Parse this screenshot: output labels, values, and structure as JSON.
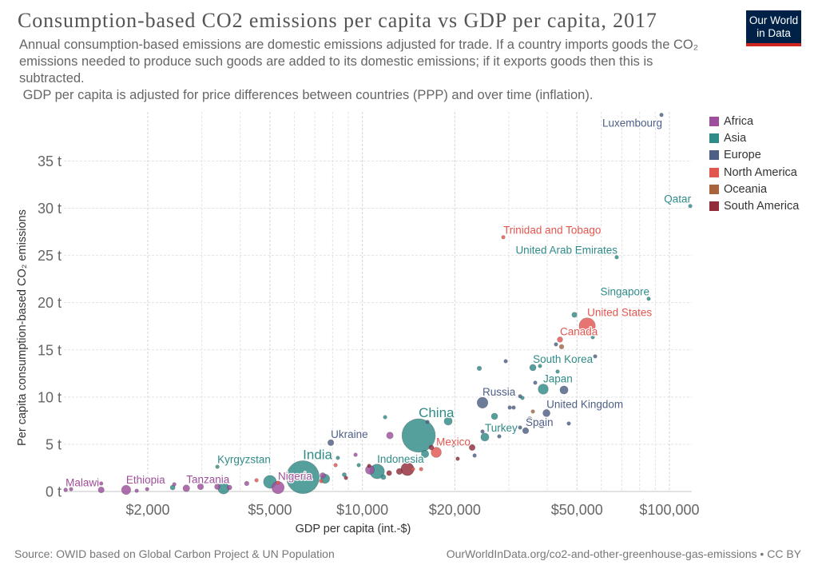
{
  "header": {
    "logo": {
      "line1": "Our World",
      "line2": "in Data"
    }
  },
  "footer": {
    "source": "Source: OWID based on Global Carbon Project & UN Population",
    "url": "OurWorldInData.org/co2-and-other-greenhouse-gas-emissions",
    "separator": " • ",
    "license": "CC BY"
  },
  "chart_data": {
    "type": "scatter",
    "title": "Consumption-based CO2 emissions per capita vs GDP per capita, 2017",
    "subtitle": [
      "Annual consumption-based emissions are domestic emissions adjusted for trade. If a country imports goods the CO₂ emissions needed to produce such goods are added to its domestic emissions; if it exports goods then this is subtracted.",
      " GDP per capita is adjusted for price differences between countries (PPP) and over time (inflation)."
    ],
    "xlabel": "GDP per capita (int.-$)",
    "ylabel": "Per capita consumption-based CO₂ emissions",
    "x_scale": "log",
    "xlim": [
      1066,
      118300
    ],
    "ylim": [
      0,
      40.2
    ],
    "grid": true,
    "x_ticks": [
      {
        "value": 2000,
        "label": "$2,000"
      },
      {
        "value": 5000,
        "label": "$5,000"
      },
      {
        "value": 10000,
        "label": "$10,000"
      },
      {
        "value": 20000,
        "label": "$20,000"
      },
      {
        "value": 50000,
        "label": "$50,000"
      },
      {
        "value": 100000,
        "label": "$100,000"
      }
    ],
    "x_grid": [
      2000,
      3000,
      4000,
      5000,
      6000,
      7000,
      8000,
      9000,
      10000,
      20000,
      30000,
      40000,
      50000,
      60000,
      70000,
      80000,
      90000,
      100000
    ],
    "y_ticks": [
      {
        "value": 0,
        "label": "0 t"
      },
      {
        "value": 5,
        "label": "5 t"
      },
      {
        "value": 10,
        "label": "10 t"
      },
      {
        "value": 15,
        "label": "15 t"
      },
      {
        "value": 20,
        "label": "20 t"
      },
      {
        "value": 25,
        "label": "25 t"
      },
      {
        "value": 30,
        "label": "30 t"
      },
      {
        "value": 35,
        "label": "35 t"
      }
    ],
    "legend_position": "right",
    "legend": [
      {
        "name": "Africa",
        "color": "#9e4f9c"
      },
      {
        "name": "Asia",
        "color": "#2f8b87"
      },
      {
        "name": "Europe",
        "color": "#4d5f85"
      },
      {
        "name": "North America",
        "color": "#e25650"
      },
      {
        "name": "Oceania",
        "color": "#a8653d"
      },
      {
        "name": "South America",
        "color": "#932c3a"
      }
    ],
    "points": [
      {
        "label": "Malawi",
        "continent": "Africa",
        "gdp": 1080,
        "co2": 0.17,
        "population_m": 18
      },
      {
        "continent": "Africa",
        "gdp": 1125,
        "co2": 0.25,
        "population_m": 12
      },
      {
        "continent": "Africa",
        "gdp": 1410,
        "co2": 0.85,
        "population_m": 8
      },
      {
        "continent": "Africa",
        "gdp": 1410,
        "co2": 0.17,
        "population_m": 45
      },
      {
        "label": "Ethiopia",
        "continent": "Africa",
        "gdp": 1700,
        "co2": 0.17,
        "population_m": 105
      },
      {
        "continent": "Africa",
        "gdp": 1840,
        "co2": 0.08,
        "population_m": 15
      },
      {
        "continent": "Africa",
        "gdp": 1990,
        "co2": 0.25,
        "population_m": 15
      },
      {
        "continent": "Africa",
        "gdp": 2440,
        "co2": 0.76,
        "population_m": 10
      },
      {
        "label": "Tanzania",
        "continent": "Africa",
        "gdp": 2670,
        "co2": 0.34,
        "population_m": 57
      },
      {
        "continent": "Africa",
        "gdp": 2970,
        "co2": 0.51,
        "population_m": 45
      },
      {
        "continent": "Africa",
        "gdp": 3370,
        "co2": 0.51,
        "population_m": 40
      },
      {
        "continent": "Africa",
        "gdp": 3690,
        "co2": 0.42,
        "population_m": 30
      },
      {
        "continent": "Africa",
        "gdp": 4200,
        "co2": 0.85,
        "population_m": 25
      },
      {
        "label": "Nigeria",
        "continent": "Africa",
        "gdp": 5310,
        "co2": 0.42,
        "population_m": 191
      },
      {
        "continent": "Africa",
        "gdp": 7430,
        "co2": 1.69,
        "population_m": 40
      },
      {
        "continent": "Africa",
        "gdp": 9500,
        "co2": 3.89,
        "population_m": 8
      },
      {
        "continent": "Africa",
        "gdp": 10580,
        "co2": 2.29,
        "population_m": 97
      },
      {
        "continent": "Africa",
        "gdp": 12290,
        "co2": 5.93,
        "population_m": 57
      },
      {
        "continent": "Asia",
        "gdp": 2410,
        "co2": 0.42,
        "population_m": 30
      },
      {
        "continent": "Asia",
        "gdp": 3530,
        "co2": 0.34,
        "population_m": 159
      },
      {
        "label": "Kyrgyzstan",
        "continent": "Asia",
        "gdp": 3370,
        "co2": 2.62,
        "population_m": 6
      },
      {
        "continent": "Asia",
        "gdp": 5000,
        "co2": 1.02,
        "population_m": 207
      },
      {
        "label": "India",
        "continent": "Asia",
        "gdp": 6400,
        "co2": 1.52,
        "population_m": 1339
      },
      {
        "continent": "Asia",
        "gdp": 7560,
        "co2": 1.35,
        "population_m": 105
      },
      {
        "continent": "Asia",
        "gdp": 8320,
        "co2": 3.56,
        "population_m": 10
      },
      {
        "continent": "Asia",
        "gdp": 8730,
        "co2": 1.78,
        "population_m": 21
      },
      {
        "continent": "Asia",
        "gdp": 9730,
        "co2": 2.79,
        "population_m": 10
      },
      {
        "label": "Indonesia",
        "continent": "Asia",
        "gdp": 11170,
        "co2": 2.12,
        "population_m": 264
      },
      {
        "continent": "Asia",
        "gdp": 11710,
        "co2": 1.52,
        "population_m": 30
      },
      {
        "continent": "Asia",
        "gdp": 11860,
        "co2": 7.87,
        "population_m": 6
      },
      {
        "label": "China",
        "continent": "Asia",
        "gdp": 15250,
        "co2": 5.93,
        "population_m": 1386
      },
      {
        "continent": "Asia",
        "gdp": 16000,
        "co2": 3.98,
        "population_m": 69
      },
      {
        "continent": "Asia",
        "gdp": 19030,
        "co2": 7.45,
        "population_m": 81
      },
      {
        "continent": "Asia",
        "gdp": 24040,
        "co2": 13.04,
        "population_m": 25
      },
      {
        "label": "Turkey",
        "continent": "Asia",
        "gdp": 25060,
        "co2": 5.76,
        "population_m": 81
      },
      {
        "continent": "Asia",
        "gdp": 26940,
        "co2": 7.96,
        "population_m": 50
      },
      {
        "continent": "Asia",
        "gdp": 33220,
        "co2": 9.91,
        "population_m": 9
      },
      {
        "label": "South Korea",
        "continent": "Asia",
        "gdp": 35920,
        "co2": 13.12,
        "population_m": 51
      },
      {
        "continent": "Asia",
        "gdp": 37900,
        "co2": 13.29,
        "population_m": 4
      },
      {
        "continent": "Asia",
        "gdp": 43240,
        "co2": 12.7,
        "population_m": 2
      },
      {
        "label": "Japan",
        "continent": "Asia",
        "gdp": 38820,
        "co2": 10.84,
        "population_m": 127
      },
      {
        "continent": "Asia",
        "gdp": 49040,
        "co2": 18.71,
        "population_m": 33
      },
      {
        "continent": "Asia",
        "gdp": 56280,
        "co2": 16.34,
        "population_m": 4
      },
      {
        "label": "Singapore",
        "continent": "Asia",
        "gdp": 85600,
        "co2": 20.41,
        "population_m": 5.7
      },
      {
        "label": "United Arab Emirates",
        "continent": "Asia",
        "gdp": 67360,
        "co2": 24.81,
        "population_m": 9.5
      },
      {
        "label": "Qatar",
        "continent": "Asia",
        "gdp": 116940,
        "co2": 30.23,
        "population_m": 2.6
      },
      {
        "label": "Ukraine",
        "continent": "Europe",
        "gdp": 7890,
        "co2": 5.17,
        "population_m": 44
      },
      {
        "continent": "Europe",
        "gdp": 16290,
        "co2": 7.37,
        "population_m": 3
      },
      {
        "continent": "Europe",
        "gdp": 19730,
        "co2": 4.91,
        "population_m": 7
      },
      {
        "continent": "Europe",
        "gdp": 23200,
        "co2": 3.81,
        "population_m": 10
      },
      {
        "continent": "Europe",
        "gdp": 24620,
        "co2": 6.35,
        "population_m": 4
      },
      {
        "label": "Russia",
        "continent": "Europe",
        "gdp": 24620,
        "co2": 9.4,
        "population_m": 145
      },
      {
        "continent": "Europe",
        "gdp": 27920,
        "co2": 5.84,
        "population_m": 10
      },
      {
        "continent": "Europe",
        "gdp": 29300,
        "co2": 13.8,
        "population_m": 2
      },
      {
        "continent": "Europe",
        "gdp": 30200,
        "co2": 8.89,
        "population_m": 5
      },
      {
        "continent": "Europe",
        "gdp": 31100,
        "co2": 8.89,
        "population_m": 5
      },
      {
        "continent": "Europe",
        "gdp": 32640,
        "co2": 6.77,
        "population_m": 5
      },
      {
        "continent": "Europe",
        "gdp": 32640,
        "co2": 10.08,
        "population_m": 10
      },
      {
        "label": "Spain",
        "continent": "Europe",
        "gdp": 34020,
        "co2": 6.44,
        "population_m": 46
      },
      {
        "continent": "Europe",
        "gdp": 35060,
        "co2": 7.62,
        "population_m": 38
      },
      {
        "continent": "Europe",
        "gdp": 38360,
        "co2": 7.11,
        "population_m": 60
      },
      {
        "continent": "Europe",
        "gdp": 36560,
        "co2": 11.52,
        "population_m": 5
      },
      {
        "continent": "Europe",
        "gdp": 45360,
        "co2": 10.75,
        "population_m": 82
      },
      {
        "label": "United Kingdom",
        "continent": "Europe",
        "gdp": 39780,
        "co2": 8.3,
        "population_m": 66
      },
      {
        "continent": "Europe",
        "gdp": 47020,
        "co2": 7.2,
        "population_m": 9
      },
      {
        "continent": "Europe",
        "gdp": 42720,
        "co2": 15.58,
        "population_m": 11
      },
      {
        "continent": "Europe",
        "gdp": 57320,
        "co2": 14.31,
        "population_m": 5
      },
      {
        "label": "Luxembourg",
        "continent": "Europe",
        "gdp": 94240,
        "co2": 39.88,
        "population_m": 0.6
      },
      {
        "continent": "North America",
        "gdp": 4520,
        "co2": 1.19,
        "population_m": 11
      },
      {
        "continent": "North America",
        "gdp": 5310,
        "co2": 0.93,
        "population_m": 3
      },
      {
        "continent": "North America",
        "gdp": 7340,
        "co2": 1.1,
        "population_m": 6
      },
      {
        "continent": "North America",
        "gdp": 8180,
        "co2": 2.79,
        "population_m": 5
      },
      {
        "continent": "North America",
        "gdp": 14620,
        "co2": 2.37,
        "population_m": 3
      },
      {
        "continent": "North America",
        "gdp": 15530,
        "co2": 2.37,
        "population_m": 5
      },
      {
        "label": "Mexico",
        "continent": "North America",
        "gdp": 17400,
        "co2": 4.15,
        "population_m": 129
      },
      {
        "label": "Trinidad and Tobago",
        "continent": "North America",
        "gdp": 28780,
        "co2": 26.93,
        "population_m": 1.4
      },
      {
        "label": "Canada",
        "continent": "North America",
        "gdp": 44020,
        "co2": 16.09,
        "population_m": 37
      },
      {
        "label": "United States",
        "continent": "North America",
        "gdp": 54000,
        "co2": 17.53,
        "population_m": 325
      },
      {
        "continent": "Oceania",
        "gdp": 44560,
        "co2": 15.33,
        "population_m": 25
      },
      {
        "continent": "Oceania",
        "gdp": 35920,
        "co2": 8.47,
        "population_m": 5
      },
      {
        "continent": "South America",
        "gdp": 8840,
        "co2": 1.44,
        "population_m": 10
      },
      {
        "continent": "South America",
        "gdp": 10520,
        "co2": 2.71,
        "population_m": 17
      },
      {
        "continent": "South America",
        "gdp": 12220,
        "co2": 1.95,
        "population_m": 32
      },
      {
        "continent": "South America",
        "gdp": 13200,
        "co2": 2.12,
        "population_m": 45
      },
      {
        "continent": "South America",
        "gdp": 14020,
        "co2": 2.37,
        "population_m": 209
      },
      {
        "continent": "South America",
        "gdp": 16780,
        "co2": 4.66,
        "population_m": 30
      },
      {
        "continent": "South America",
        "gdp": 20440,
        "co2": 3.47,
        "population_m": 17
      },
      {
        "continent": "South America",
        "gdp": 22780,
        "co2": 4.66,
        "population_m": 44
      }
    ]
  }
}
